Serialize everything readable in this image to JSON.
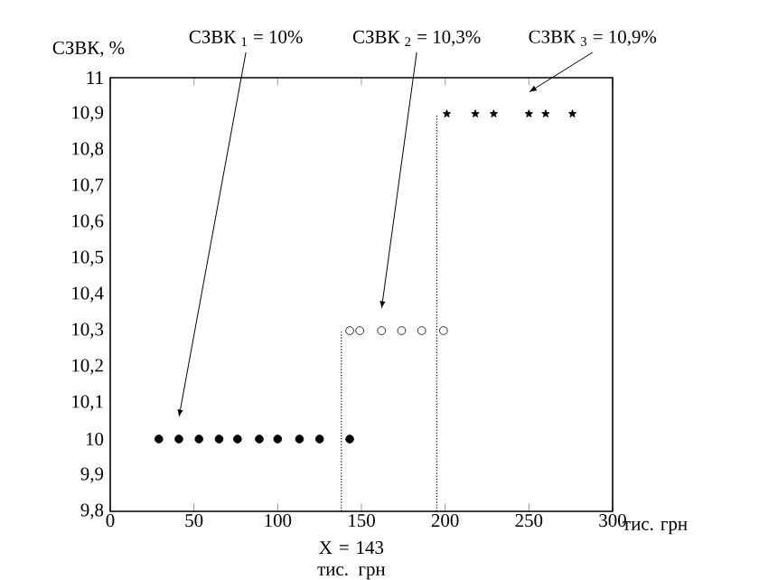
{
  "chart_data": {
    "type": "scatter",
    "xlabel": "тис. грн",
    "ylabel": "СЗВК, %",
    "xlim": [
      0,
      300
    ],
    "xticks": [
      0,
      50,
      100,
      150,
      200,
      250,
      300
    ],
    "ylim": [
      9.8,
      11
    ],
    "yticks": [
      {
        "value": 9.8,
        "label": "9,8"
      },
      {
        "value": 9.9,
        "label": "9,9"
      },
      10,
      {
        "value": 10.1,
        "label": "10,1"
      },
      {
        "value": 10.2,
        "label": "10,2"
      },
      {
        "value": 10.3,
        "label": "10,3"
      },
      {
        "value": 10.4,
        "label": "10,4"
      },
      {
        "value": 10.5,
        "label": "10,5"
      },
      {
        "value": 10.6,
        "label": "10,6"
      },
      {
        "value": 10.7,
        "label": "10,7"
      },
      {
        "value": 10.8,
        "label": "10,8"
      },
      {
        "value": 10.9,
        "label": "10,9"
      },
      11
    ],
    "grid": false,
    "series": [
      {
        "color": "#000000",
        "marker": "circle",
        "x": [
          29,
          41,
          53,
          65,
          76,
          89,
          100,
          113,
          125,
          143
        ],
        "values": [
          10,
          10,
          10,
          10,
          10,
          10,
          10,
          10,
          10,
          10
        ]
      },
      {
        "color": "#ffffff",
        "marker": "circle",
        "x": [
          143,
          149,
          162,
          174,
          186,
          199
        ],
        "values": [
          10.3,
          10.3,
          10.3,
          10.3,
          10.3,
          10.3
        ]
      },
      {
        "color": "#000000",
        "marker": "star",
        "x": [
          201,
          218,
          229,
          250,
          260,
          276
        ],
        "values": [
          10.9,
          10.9,
          10.9,
          10.9,
          10.9,
          10.9
        ]
      },
      {
        "type": "line",
        "color": "#000000",
        "marker": "none",
        "line_style": "dotted",
        "x": [
          138,
          138
        ],
        "values": [
          9.8,
          10.3
        ]
      },
      {
        "type": "line",
        "color": "#000000",
        "marker": "none",
        "line_style": "dotted",
        "x": [
          195,
          195
        ],
        "values": [
          9.8,
          10.9
        ]
      }
    ],
    "annotations": [
      "СЗВК $_{1}$ = 10%",
      "СЗВК $_{2}$ = 10,3%",
      "СЗВК $_{3}$ = 10,9%",
      "X = 143 тис. грн"
    ]
  }
}
